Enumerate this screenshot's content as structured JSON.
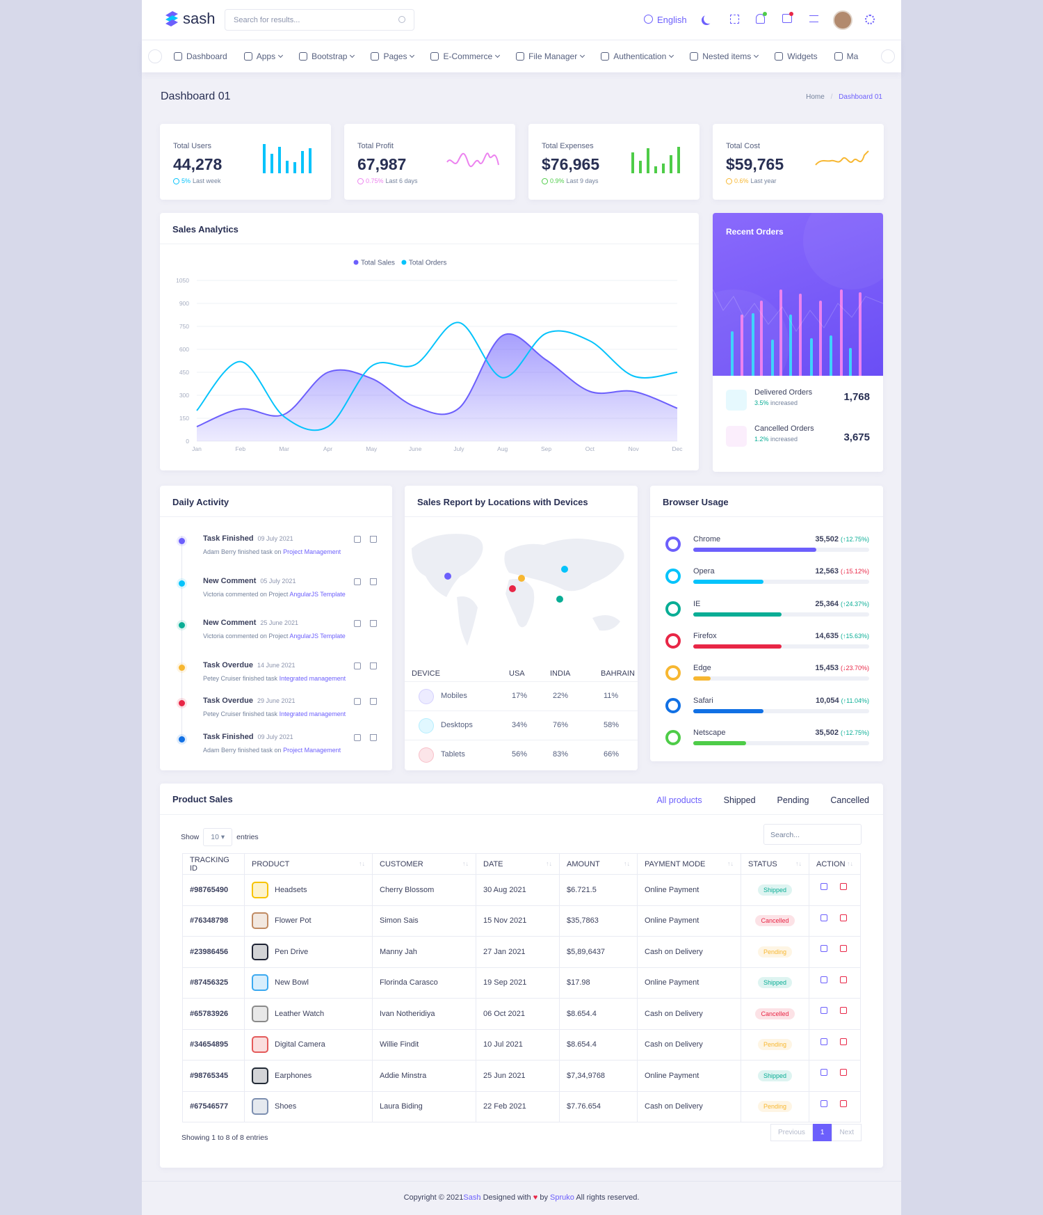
{
  "header": {
    "logo": "sash",
    "search": "Search for results...",
    "language": "English"
  },
  "nav": [
    {
      "label": "Dashboard",
      "dropdown": false
    },
    {
      "label": "Apps",
      "dropdown": true
    },
    {
      "label": "Bootstrap",
      "dropdown": true
    },
    {
      "label": "Pages",
      "dropdown": true
    },
    {
      "label": "E-Commerce",
      "dropdown": true
    },
    {
      "label": "File Manager",
      "dropdown": true
    },
    {
      "label": "Authentication",
      "dropdown": true
    },
    {
      "label": "Nested items",
      "dropdown": true
    },
    {
      "label": "Widgets",
      "dropdown": false
    },
    {
      "label": "Ma",
      "dropdown": false
    }
  ],
  "page_title": "Dashboard 01",
  "breadcrumb": [
    "Home",
    "Dashboard 01"
  ],
  "stats": [
    {
      "label": "Total Users",
      "value": "44,278",
      "change": "5%",
      "period": "Last week",
      "color": "#05c3fb"
    },
    {
      "label": "Total Profit",
      "value": "67,987",
      "change": "0.75%",
      "period": "Last 6 days",
      "color": "#ec82ef"
    },
    {
      "label": "Total Expenses",
      "value": "$76,965",
      "change": "0.9%",
      "period": "Last 9 days",
      "color": "#4ecc48"
    },
    {
      "label": "Total Cost",
      "value": "$59,765",
      "change": "0.6%",
      "period": "Last year",
      "color": "#f7b731"
    }
  ],
  "chart_data": {
    "type": "line",
    "title": "Sales Analytics",
    "categories": [
      "Jan",
      "Feb",
      "Mar",
      "Apr",
      "May",
      "June",
      "July",
      "Aug",
      "Sep",
      "Oct",
      "Nov",
      "Dec"
    ],
    "series": [
      {
        "name": "Total Sales",
        "color": "#6c5ffc",
        "fill": true,
        "values": [
          95,
          210,
          175,
          450,
          410,
          225,
          215,
          690,
          530,
          325,
          325,
          215
        ]
      },
      {
        "name": "Total Orders",
        "color": "#05c3fb",
        "fill": false,
        "values": [
          200,
          520,
          160,
          95,
          490,
          500,
          775,
          415,
          705,
          655,
          425,
          450
        ]
      }
    ],
    "ylim": [
      0,
      1050
    ],
    "yticks": [
      0,
      150,
      300,
      450,
      600,
      750,
      900,
      1050
    ],
    "grid": true
  },
  "recent_orders": {
    "title": "Recent Orders",
    "items": [
      {
        "label": "Delivered Orders",
        "change": "3.5%",
        "note": "increased",
        "value": "1,768"
      },
      {
        "label": "Cancelled Orders",
        "change": "1.2%",
        "note": "increased",
        "value": "3,675"
      }
    ]
  },
  "daily_activity": {
    "title": "Daily Activity",
    "items": [
      {
        "title": "Task Finished",
        "date": "09 July 2021",
        "text": "Adam Berry finished task on",
        "link": "Project Management",
        "color": "#6c5ffc"
      },
      {
        "title": "New Comment",
        "date": "05 July 2021",
        "text": "Victoria commented on Project",
        "link": "AngularJS Template",
        "color": "#05c3fb"
      },
      {
        "title": "New Comment",
        "date": "25 June 2021",
        "text": "Victoria commented on Project",
        "link": "AngularJS Template",
        "color": "#09ad95"
      },
      {
        "title": "Task Overdue",
        "date": "14 June 2021",
        "text": "Petey Cruiser finished task",
        "link": "Integrated management",
        "color": "#f7b731"
      },
      {
        "title": "Task Overdue",
        "date": "29 June 2021",
        "text": "Petey Cruiser finished task",
        "link": "Integrated management",
        "color": "#e82646"
      },
      {
        "title": "Task Finished",
        "date": "09 July 2021",
        "text": "Adam Berry finished task on",
        "link": "Project Management",
        "color": "#1170e4"
      }
    ]
  },
  "sales_report": {
    "title": "Sales Report by Locations with Devices",
    "columns": [
      "DEVICE",
      "USA",
      "INDIA",
      "BAHRAIN"
    ],
    "rows": [
      {
        "device": "Mobiles",
        "cells": [
          "17%",
          "22%",
          "11%"
        ],
        "color": "#6c5ffc"
      },
      {
        "device": "Desktops",
        "cells": [
          "34%",
          "76%",
          "58%"
        ],
        "color": "#05c3fb"
      },
      {
        "device": "Tablets",
        "cells": [
          "56%",
          "83%",
          "66%"
        ],
        "color": "#e82646"
      }
    ]
  },
  "browser_usage": {
    "title": "Browser Usage",
    "items": [
      {
        "name": "Chrome",
        "value": "35,502",
        "change": "(↑12.75%)",
        "color": "#6c5ffc",
        "bar": 70
      },
      {
        "name": "Opera",
        "value": "12,563",
        "change": "(↓15.12%)",
        "color": "#05c3fb",
        "bar": 40
      },
      {
        "name": "IE",
        "value": "25,364",
        "change": "(↑24.37%)",
        "color": "#09ad95",
        "bar": 50
      },
      {
        "name": "Firefox",
        "value": "14,635",
        "change": "(↑15.63%)",
        "color": "#e82646",
        "bar": 50
      },
      {
        "name": "Edge",
        "value": "15,453",
        "change": "(↓23.70%)",
        "color": "#f7b731",
        "bar": 10
      },
      {
        "name": "Safari",
        "value": "10,054",
        "change": "(↑11.04%)",
        "color": "#1170e4",
        "bar": 40
      },
      {
        "name": "Netscape",
        "value": "35,502",
        "change": "(↑12.75%)",
        "color": "#4ecc48",
        "bar": 30
      }
    ]
  },
  "product_sales": {
    "title": "Product Sales",
    "tabs": [
      "All products",
      "Shipped",
      "Pending",
      "Cancelled"
    ],
    "show": "Show",
    "page_size": "10",
    "entries": "entries",
    "search": "Search...",
    "columns": [
      "TRACKING ID",
      "PRODUCT",
      "CUSTOMER",
      "DATE",
      "AMOUNT",
      "PAYMENT MODE",
      "STATUS",
      "ACTION"
    ],
    "rows": [
      {
        "id": "#98765490",
        "product": "Headsets",
        "customer": "Cherry Blossom",
        "date": "30 Aug 2021",
        "amount": "$6.721.5",
        "payment": "Online Payment",
        "status": "Shipped",
        "status_color": "#09ad95"
      },
      {
        "id": "#76348798",
        "product": "Flower Pot",
        "customer": "Simon Sais",
        "date": "15 Nov 2021",
        "amount": "$35,7863",
        "payment": "Online Payment",
        "status": "Cancelled",
        "status_color": "#e82646"
      },
      {
        "id": "#23986456",
        "product": "Pen Drive",
        "customer": "Manny Jah",
        "date": "27 Jan 2021",
        "amount": "$5,89,6437",
        "payment": "Cash on Delivery",
        "status": "Pending",
        "status_color": "#f7b731"
      },
      {
        "id": "#87456325",
        "product": "New Bowl",
        "customer": "Florinda Carasco",
        "date": "19 Sep 2021",
        "amount": "$17.98",
        "payment": "Online Payment",
        "status": "Shipped",
        "status_color": "#09ad95"
      },
      {
        "id": "#65783926",
        "product": "Leather Watch",
        "customer": "Ivan Notheridiya",
        "date": "06 Oct 2021",
        "amount": "$8.654.4",
        "payment": "Cash on Delivery",
        "status": "Cancelled",
        "status_color": "#e82646"
      },
      {
        "id": "#34654895",
        "product": "Digital Camera",
        "customer": "Willie Findit",
        "date": "10 Jul 2021",
        "amount": "$8.654.4",
        "payment": "Cash on Delivery",
        "status": "Pending",
        "status_color": "#f7b731"
      },
      {
        "id": "#98765345",
        "product": "Earphones",
        "customer": "Addie Minstra",
        "date": "25 Jun 2021",
        "amount": "$7,34,9768",
        "payment": "Online Payment",
        "status": "Shipped",
        "status_color": "#09ad95"
      },
      {
        "id": "#67546577",
        "product": "Shoes",
        "customer": "Laura Biding",
        "date": "22 Feb 2021",
        "amount": "$7.76.654",
        "payment": "Cash on Delivery",
        "status": "Pending",
        "status_color": "#f7b731"
      }
    ],
    "summary": "Showing 1 to 8 of 8 entries",
    "pagination": [
      "Previous",
      "1",
      "Next"
    ]
  },
  "footer": {
    "prefix": "Copyright © 2021",
    "brand": "Sash",
    "designed": ". Designed with",
    "by": "by",
    "author": "Spruko",
    "suffix": "All rights reserved."
  }
}
